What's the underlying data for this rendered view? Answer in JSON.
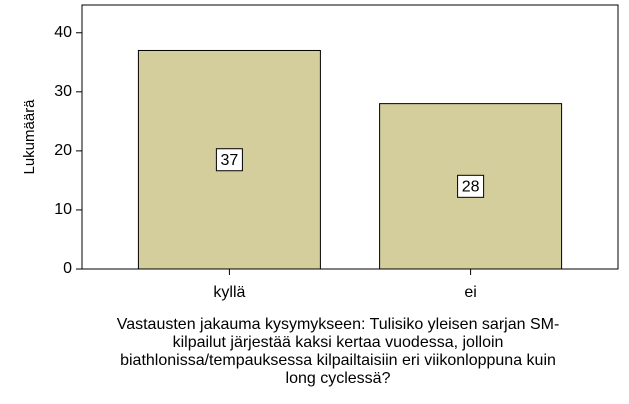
{
  "chart_data": {
    "type": "bar",
    "ylabel": "Lukumäärä",
    "xlabel": [
      "Vastausten jakauma kysymykseen: Tulisiko yleisen sarjan SM-",
      "kilpailut järjestää kaksi kertaa vuodessa, jolloin",
      "biathlonissa/tempauksessa kilpailtaisiin eri viikonloppuna kuin",
      "long cyclessä?"
    ],
    "categories": [
      "kyllä",
      "ei"
    ],
    "values": [
      37,
      28
    ],
    "color": "#d3ce9c",
    "ylim": [
      0,
      44.7
    ],
    "yticks": [
      0,
      10,
      20,
      30,
      40
    ]
  }
}
